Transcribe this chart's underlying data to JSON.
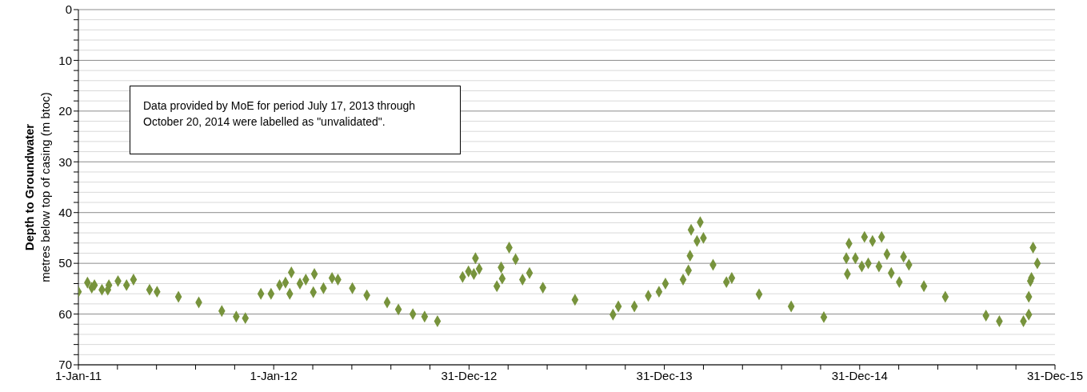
{
  "chart_data": {
    "type": "scatter",
    "ylabel": "Depth to Groundwater\nmetres below top of casing (m btoc)",
    "annotations": [
      "Data provided by MoE for period July 17, 2013 through October 20, 2014 were labelled as \"unvalidated\"."
    ],
    "x": [
      "2011-01-01",
      "2011-01-18",
      "2011-01-26",
      "2011-01-31",
      "2011-02-14",
      "2011-02-25",
      "2011-02-27",
      "2011-03-16",
      "2011-04-01",
      "2011-04-14",
      "2011-05-14",
      "2011-05-28",
      "2011-07-07",
      "2011-08-14",
      "2011-09-26",
      "2011-10-23",
      "2011-11-09",
      "2011-12-08",
      "2011-12-27",
      "2012-01-12",
      "2012-01-23",
      "2012-02-03",
      "2012-01-31",
      "2012-02-19",
      "2012-03-01",
      "2012-03-17",
      "2012-03-15",
      "2012-04-03",
      "2012-04-19",
      "2012-04-30",
      "2012-05-27",
      "2012-06-23",
      "2012-07-31",
      "2012-08-21",
      "2012-09-17",
      "2012-10-09",
      "2012-11-02",
      "2012-12-19",
      "2012-12-30",
      "2013-01-09",
      "2013-01-12",
      "2013-01-19",
      "2013-02-21",
      "2013-03-03",
      "2013-03-01",
      "2013-03-16",
      "2013-03-28",
      "2013-04-10",
      "2013-04-23",
      "2013-05-18",
      "2013-07-17",
      "2013-09-26",
      "2013-10-06",
      "2013-11-05",
      "2013-12-01",
      "2013-12-21",
      "2014-01-02",
      "2014-02-04",
      "2014-02-14",
      "2014-02-17",
      "2014-02-19",
      "2014-03-02",
      "2014-03-08",
      "2014-03-14",
      "2014-04-01",
      "2014-04-26",
      "2014-05-06",
      "2014-06-26",
      "2014-08-25",
      "2014-10-25",
      "2014-12-08",
      "2014-12-06",
      "2014-12-11",
      "2014-12-23",
      "2015-01-04",
      "2015-01-09",
      "2015-01-16",
      "2015-01-24",
      "2015-02-05",
      "2015-02-10",
      "2015-02-20",
      "2015-02-28",
      "2015-03-15",
      "2015-03-23",
      "2015-04-02",
      "2015-04-30",
      "2015-06-09",
      "2015-08-24",
      "2015-09-18",
      "2015-11-02",
      "2015-11-12",
      "2015-11-12",
      "2015-11-15",
      "2015-11-17",
      "2015-11-20",
      "2015-11-28"
    ],
    "series": [
      {
        "color": "#77933c",
        "values": [
          55.6,
          53.8,
          54.8,
          54.3,
          55.2,
          55.2,
          54.3,
          53.5,
          54.3,
          53.2,
          55.2,
          55.6,
          56.6,
          57.7,
          59.4,
          60.5,
          60.8,
          56.0,
          56.0,
          54.3,
          53.8,
          51.8,
          56.0,
          54.0,
          53.2,
          52.1,
          55.7,
          54.9,
          52.9,
          53.2,
          54.9,
          56.3,
          57.7,
          59.1,
          60.0,
          60.5,
          61.4,
          52.7,
          51.6,
          52.1,
          49.0,
          51.1,
          54.5,
          53.0,
          50.8,
          46.9,
          49.2,
          53.2,
          51.9,
          54.8,
          57.2,
          60.1,
          58.5,
          58.5,
          56.4,
          55.6,
          54.0,
          53.2,
          51.4,
          48.5,
          43.4,
          45.6,
          41.9,
          45.0,
          50.3,
          53.7,
          52.9,
          56.1,
          58.5,
          60.6,
          52.1,
          49.0,
          46.1,
          49.0,
          50.6,
          44.8,
          50.0,
          45.6,
          50.6,
          44.8,
          48.2,
          51.9,
          53.7,
          48.7,
          50.3,
          54.5,
          56.6,
          60.3,
          61.4,
          61.4,
          60.1,
          56.6,
          53.5,
          52.9,
          46.9,
          50.0
        ]
      }
    ],
    "xlim": [
      "2011-01-01",
      "2015-12-31"
    ],
    "xticks": [
      {
        "value": "2011-01-01",
        "label": "1-Jan-11"
      },
      {
        "value": "2011-03-15",
        "label": null
      },
      {
        "value": "2011-05-27",
        "label": null
      },
      {
        "value": "2011-08-08",
        "label": null
      },
      {
        "value": "2011-10-20",
        "label": null
      },
      {
        "value": "2012-01-01",
        "label": "1-Jan-12"
      },
      {
        "value": "2012-03-14",
        "label": null
      },
      {
        "value": "2012-05-26",
        "label": null
      },
      {
        "value": "2012-08-07",
        "label": null
      },
      {
        "value": "2012-10-19",
        "label": null
      },
      {
        "value": "2012-12-31",
        "label": "31-Dec-12"
      },
      {
        "value": "2013-03-14",
        "label": null
      },
      {
        "value": "2013-05-26",
        "label": null
      },
      {
        "value": "2013-08-07",
        "label": null
      },
      {
        "value": "2013-10-19",
        "label": null
      },
      {
        "value": "2013-12-31",
        "label": "31-Dec-13"
      },
      {
        "value": "2014-03-14",
        "label": null
      },
      {
        "value": "2014-05-26",
        "label": null
      },
      {
        "value": "2014-08-07",
        "label": null
      },
      {
        "value": "2014-10-19",
        "label": null
      },
      {
        "value": "2014-12-31",
        "label": "31-Dec-14"
      },
      {
        "value": "2015-03-14",
        "label": null
      },
      {
        "value": "2015-05-26",
        "label": null
      },
      {
        "value": "2015-08-07",
        "label": null
      },
      {
        "value": "2015-10-19",
        "label": null
      },
      {
        "value": "2015-12-31",
        "label": "31-Dec-15"
      }
    ],
    "ylim": [
      70,
      0
    ],
    "yticks": [
      0,
      {
        "value": 2,
        "label": null
      },
      {
        "value": 4,
        "label": null
      },
      {
        "value": 6,
        "label": null
      },
      {
        "value": 8,
        "label": null
      },
      10,
      {
        "value": 12,
        "label": null
      },
      {
        "value": 14,
        "label": null
      },
      {
        "value": 16,
        "label": null
      },
      {
        "value": 18,
        "label": null
      },
      20,
      {
        "value": 22,
        "label": null
      },
      {
        "value": 24,
        "label": null
      },
      {
        "value": 26,
        "label": null
      },
      {
        "value": 28,
        "label": null
      },
      30,
      {
        "value": 32,
        "label": null
      },
      {
        "value": 34,
        "label": null
      },
      {
        "value": 36,
        "label": null
      },
      {
        "value": 38,
        "label": null
      },
      40,
      {
        "value": 42,
        "label": null
      },
      {
        "value": 44,
        "label": null
      },
      {
        "value": 46,
        "label": null
      },
      {
        "value": 48,
        "label": null
      },
      50,
      {
        "value": 52,
        "label": null
      },
      {
        "value": 54,
        "label": null
      },
      {
        "value": 56,
        "label": null
      },
      {
        "value": 58,
        "label": null
      },
      60,
      {
        "value": 62,
        "label": null
      },
      {
        "value": 64,
        "label": null
      },
      {
        "value": 66,
        "label": null
      },
      {
        "value": 68,
        "label": null
      },
      70
    ],
    "grid": "y",
    "marker": "diamond",
    "legend": false
  }
}
